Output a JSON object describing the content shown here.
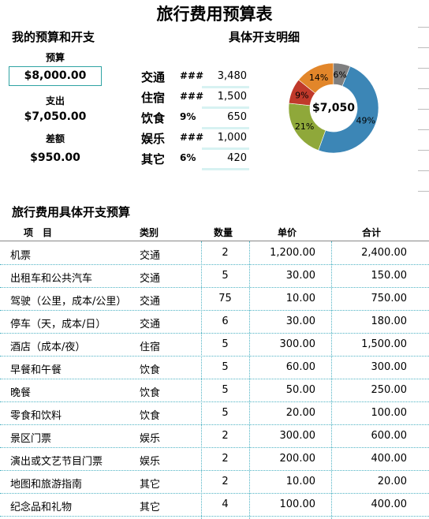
{
  "title": "旅行费用预算表",
  "summary": {
    "heading": "我的预算和开支",
    "budget_label": "预算",
    "budget_value": "$8,000.00",
    "spent_label": "支出",
    "spent_value": "$7,050.00",
    "diff_label": "差额",
    "diff_value": "$950.00"
  },
  "detail": {
    "heading": "具体开支明细",
    "items": [
      {
        "category": "交通",
        "pct": "###",
        "amount": "3,480"
      },
      {
        "category": "住宿",
        "pct": "###",
        "amount": "1,500"
      },
      {
        "category": "饮食",
        "pct": "9%",
        "amount": "650"
      },
      {
        "category": "娱乐",
        "pct": "###",
        "amount": "1,000"
      },
      {
        "category": "其它",
        "pct": "6%",
        "amount": "420"
      }
    ]
  },
  "chart_data": {
    "type": "pie",
    "center_label": "$7,050",
    "slices": [
      {
        "label": "49%",
        "value": 49,
        "color": "#3c86b6"
      },
      {
        "label": "21%",
        "value": 21,
        "color": "#8fa83a"
      },
      {
        "label": "9%",
        "value": 9,
        "color": "#c0392b"
      },
      {
        "label": "14%",
        "value": 14,
        "color": "#e2862a"
      },
      {
        "label": "6%",
        "value": 6,
        "color": "#7f7f7f"
      }
    ]
  },
  "table": {
    "heading": "旅行费用具体开支预算",
    "headers": [
      "项　目",
      "类别",
      "数量",
      "单价",
      "合计"
    ],
    "rows": [
      [
        "机票",
        "交通",
        "2",
        "1,200.00",
        "2,400.00"
      ],
      [
        "出租车和公共汽车",
        "交通",
        "5",
        "30.00",
        "150.00"
      ],
      [
        "驾驶（公里，成本/公里）",
        "交通",
        "75",
        "10.00",
        "750.00"
      ],
      [
        "停车（天，成本/日）",
        "交通",
        "6",
        "30.00",
        "180.00"
      ],
      [
        "酒店（成本/夜）",
        "住宿",
        "5",
        "300.00",
        "1,500.00"
      ],
      [
        "早餐和午餐",
        "饮食",
        "5",
        "60.00",
        "300.00"
      ],
      [
        "晚餐",
        "饮食",
        "5",
        "50.00",
        "250.00"
      ],
      [
        "零食和饮料",
        "饮食",
        "5",
        "20.00",
        "100.00"
      ],
      [
        "景区门票",
        "娱乐",
        "2",
        "300.00",
        "600.00"
      ],
      [
        "演出或文艺节目门票",
        "娱乐",
        "2",
        "200.00",
        "400.00"
      ],
      [
        "地图和旅游指南",
        "其它",
        "2",
        "10.00",
        "20.00"
      ],
      [
        "纪念品和礼物",
        "其它",
        "4",
        "100.00",
        "400.00"
      ]
    ]
  }
}
